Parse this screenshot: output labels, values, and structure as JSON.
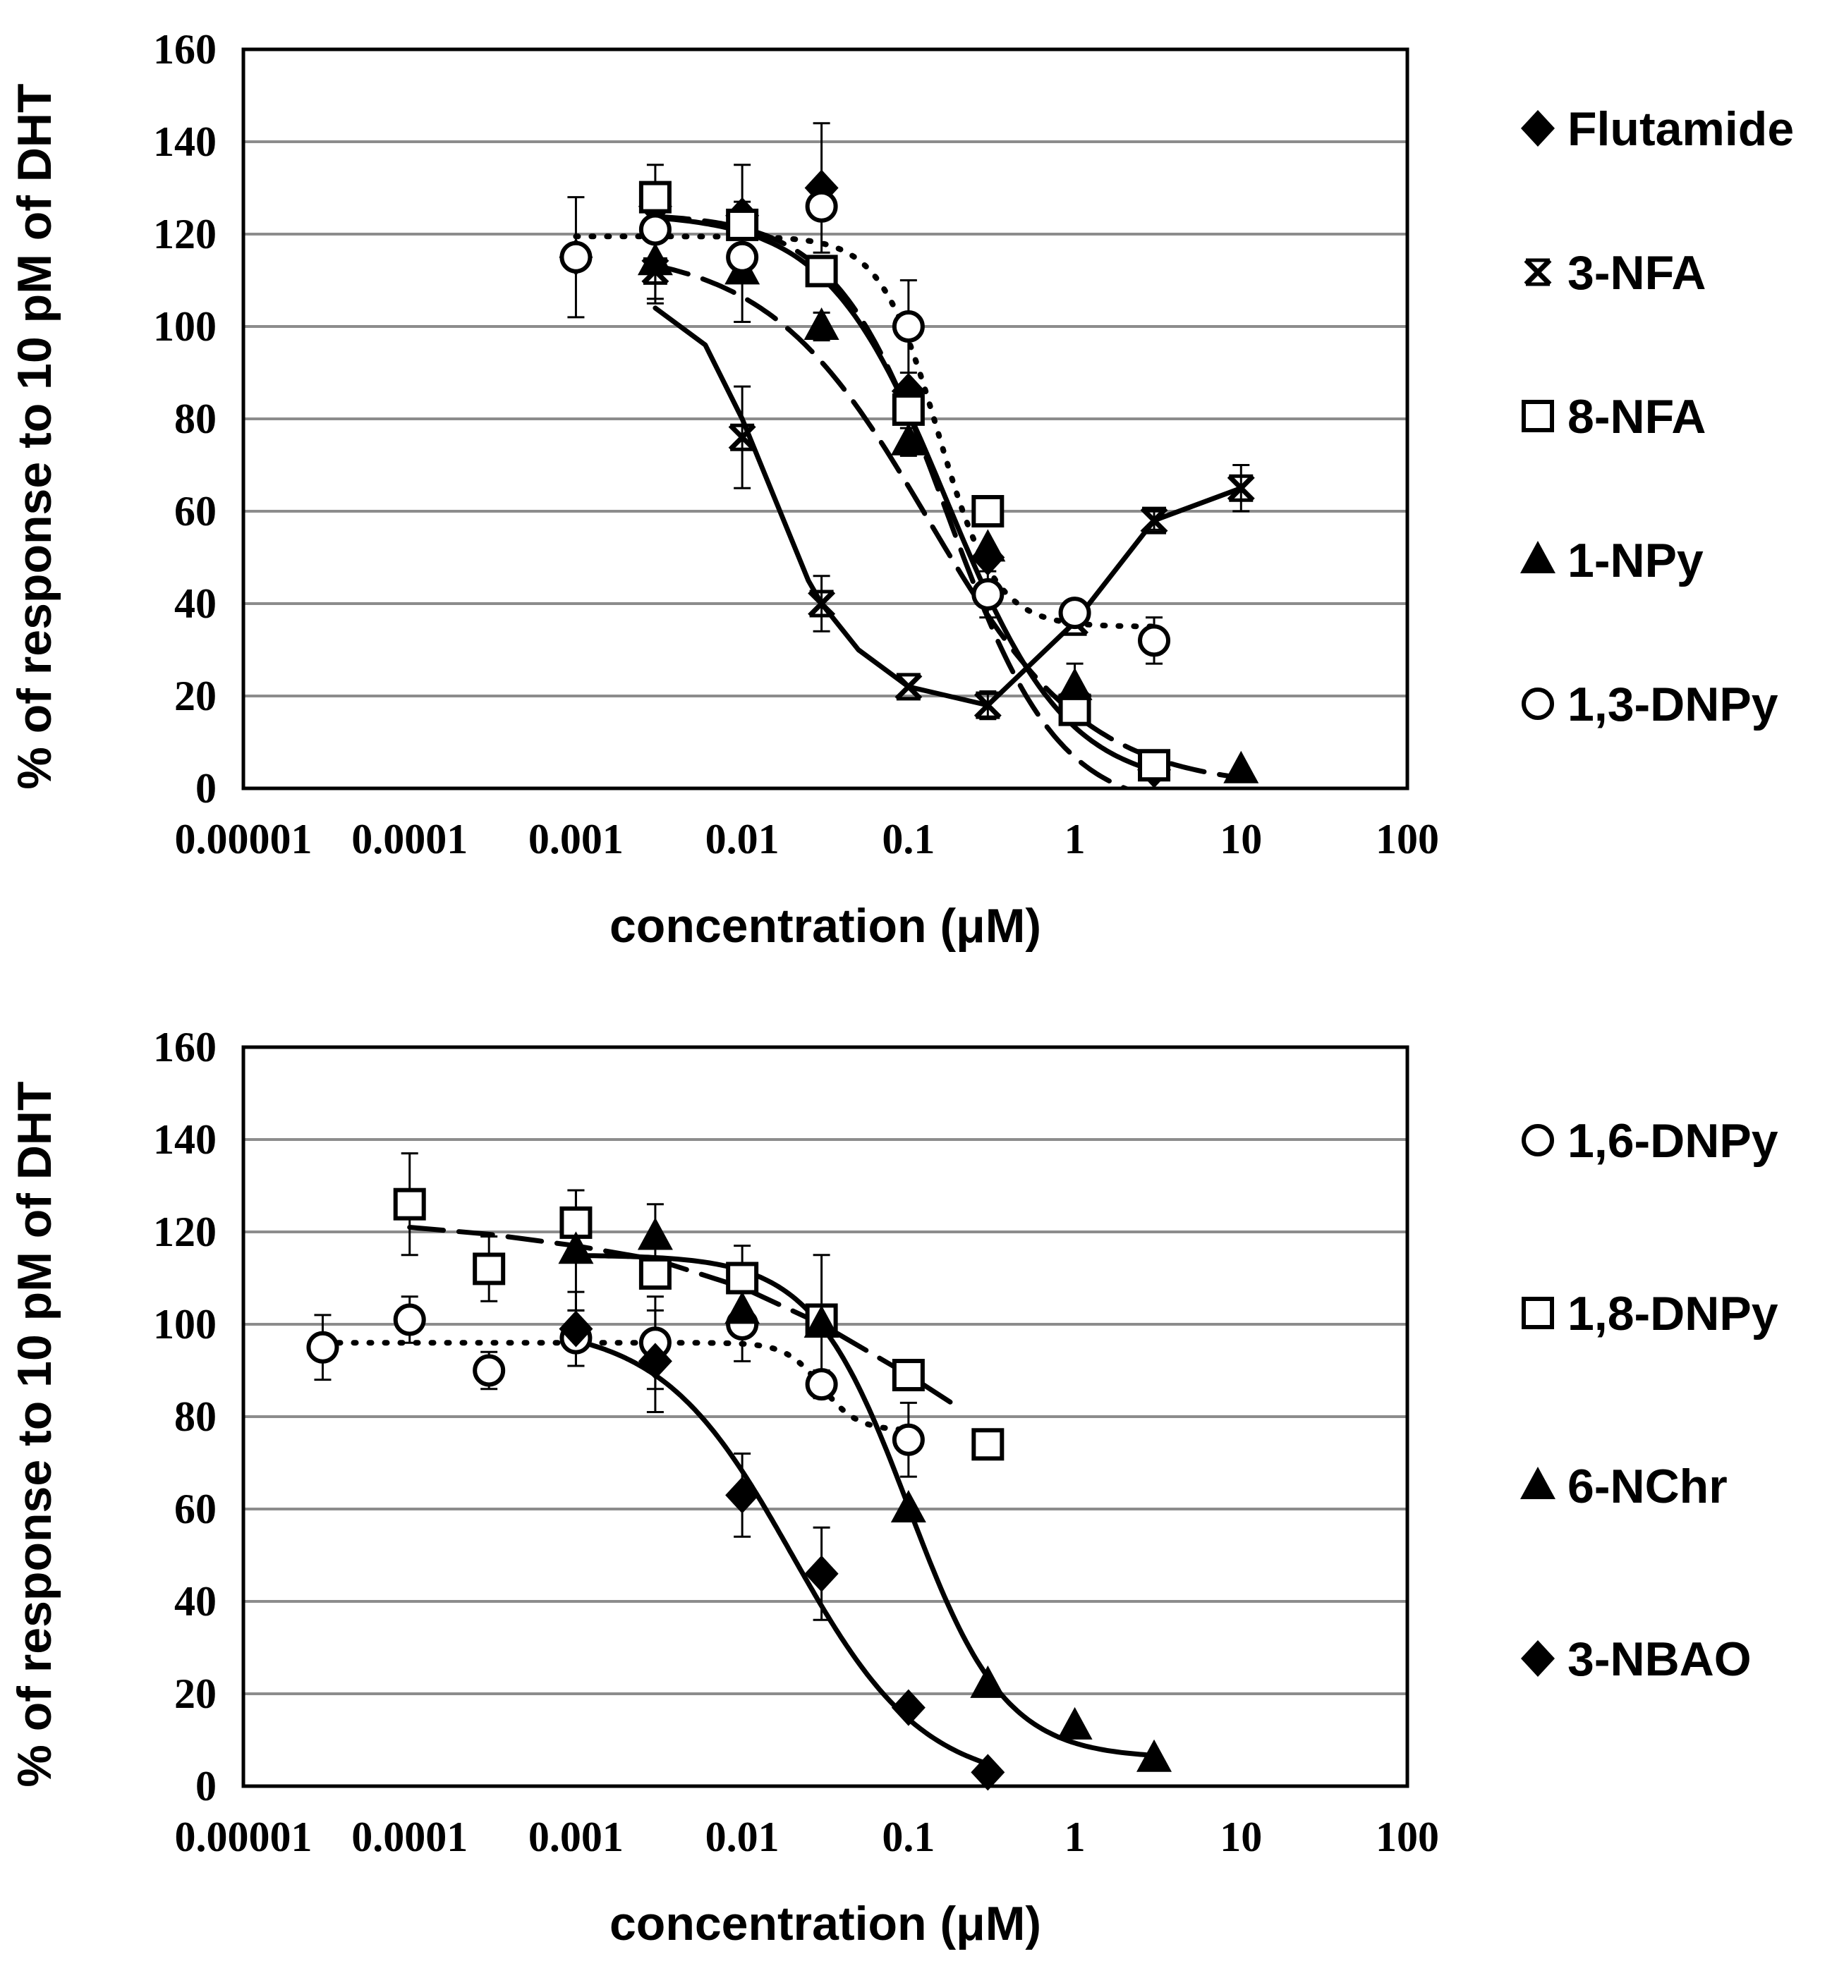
{
  "chart_data": [
    {
      "id": "top",
      "type": "scatter",
      "xscale": "log",
      "xlabel": "concentration (μM)",
      "ylabel": "% of response to 10 pM of DHT",
      "xlim": [
        1e-05,
        100
      ],
      "ylim": [
        0,
        160
      ],
      "xticks": [
        "0.00001",
        "0.0001",
        "0.001",
        "0.01",
        "0.1",
        "1",
        "10",
        "100"
      ],
      "yticks": [
        "0",
        "20",
        "40",
        "60",
        "80",
        "100",
        "120",
        "140",
        "160"
      ],
      "grid": true,
      "legend_position": "right",
      "series": [
        {
          "name": "Flutamide",
          "marker": "diamond",
          "x": [
            0.001,
            0.003,
            0.01,
            0.03,
            0.1,
            0.3,
            1,
            3
          ],
          "y": [
            115,
            126,
            124,
            130,
            86,
            50,
            20,
            4
          ],
          "err": [
            0,
            0,
            11,
            14,
            0,
            0,
            0,
            0
          ],
          "fit": {
            "style": "solid",
            "top": 124.5,
            "bottom": 0,
            "ec50": 0.17,
            "hill": 1.2,
            "xrange": [
              0.003,
              3
            ]
          }
        },
        {
          "name": "3-NFA",
          "marker": "star",
          "x": [
            0.003,
            0.01,
            0.03,
            0.1,
            0.3,
            1,
            3,
            10
          ],
          "y": [
            112,
            76,
            40,
            22,
            18,
            36,
            58,
            65
          ],
          "err": [
            7,
            11,
            6,
            0,
            3,
            0,
            2,
            5
          ],
          "line": {
            "style": "solid",
            "x": [
              0.003,
              0.006,
              0.01,
              0.016,
              0.025,
              0.03,
              0.05,
              0.1,
              0.3,
              1,
              3,
              10
            ],
            "y": [
              104,
              96,
              80,
              62,
              45,
              40,
              30,
              22,
              18,
              36,
              58,
              65
            ]
          }
        },
        {
          "name": "8-NFA",
          "marker": "square",
          "x": [
            0.003,
            0.01,
            0.03,
            0.1,
            0.3,
            1,
            3
          ],
          "y": [
            128,
            122,
            112,
            82,
            60,
            17,
            5
          ],
          "err": [
            7,
            5,
            0,
            0,
            0,
            0,
            0
          ],
          "fit": {
            "style": "dashed",
            "top": 124.5,
            "bottom": -5,
            "ec50": 0.17,
            "hill": 1.3,
            "xrange": [
              0.003,
              7
            ]
          }
        },
        {
          "name": "1-NPy",
          "marker": "triangle",
          "x": [
            0.003,
            0.01,
            0.03,
            0.1,
            0.3,
            1,
            10
          ],
          "y": [
            114,
            112,
            100,
            75,
            52,
            22,
            4
          ],
          "err": [
            8,
            11,
            3,
            3,
            0,
            5,
            0
          ],
          "fit": {
            "style": "dashed",
            "top": 117,
            "bottom": 0,
            "ec50": 0.13,
            "hill": 0.9,
            "xrange": [
              0.003,
              10
            ]
          }
        },
        {
          "name": "1,3-DNPy",
          "marker": "circle",
          "x": [
            0.001,
            0.003,
            0.01,
            0.03,
            0.1,
            0.3,
            1,
            3
          ],
          "y": [
            115,
            121,
            115,
            126,
            100,
            42,
            38,
            32
          ],
          "err": [
            13,
            7,
            0,
            0,
            10,
            5,
            0,
            5
          ],
          "fit": {
            "style": "dotted",
            "top": 119.5,
            "bottom": 35,
            "ec50": 0.15,
            "hill": 2.5,
            "xrange": [
              0.001,
              3
            ]
          }
        }
      ]
    },
    {
      "id": "bottom",
      "type": "scatter",
      "xscale": "log",
      "xlabel": "concentration (μM)",
      "ylabel": "% of response to 10 pM of DHT",
      "xlim": [
        1e-05,
        100
      ],
      "ylim": [
        0,
        160
      ],
      "xticks": [
        "0.00001",
        "0.0001",
        "0.001",
        "0.01",
        "0.1",
        "1",
        "10",
        "100"
      ],
      "yticks": [
        "0",
        "20",
        "40",
        "60",
        "80",
        "100",
        "120",
        "140",
        "160"
      ],
      "grid": true,
      "legend_position": "right",
      "series": [
        {
          "name": "1,6-DNPy",
          "marker": "circle",
          "x": [
            3e-05,
            0.0001,
            0.0003,
            0.001,
            0.003,
            0.01,
            0.03,
            0.1
          ],
          "y": [
            95,
            101,
            90,
            97,
            96,
            100,
            87,
            75
          ],
          "err": [
            7,
            5,
            4,
            6,
            10,
            8,
            3,
            8
          ],
          "fit": {
            "style": "dotted",
            "top": 96,
            "bottom": 77,
            "ec50": 0.03,
            "hill": 4,
            "xrange": [
              3e-05,
              0.1
            ]
          }
        },
        {
          "name": "1,8-DNPy",
          "marker": "square",
          "x": [
            0.0001,
            0.0003,
            0.001,
            0.003,
            0.01,
            0.03,
            0.1,
            0.3
          ],
          "y": [
            126,
            112,
            122,
            111,
            110,
            101,
            89,
            74
          ],
          "err": [
            11,
            7,
            7,
            0,
            7,
            14,
            2,
            3
          ],
          "line": {
            "style": "dashed",
            "x": [
              0.0001,
              0.0003,
              0.001,
              0.003,
              0.01,
              0.03,
              0.1,
              0.2
            ],
            "y": [
              121,
              119.5,
              117,
              114,
              108,
              100,
              89,
              82
            ]
          }
        },
        {
          "name": "6-NChr",
          "marker": "triangle",
          "x": [
            0.001,
            0.003,
            0.01,
            0.03,
            0.1,
            0.3,
            1,
            3
          ],
          "y": [
            116,
            119,
            103,
            100,
            60,
            22,
            13,
            6
          ],
          "err": [
            13,
            7,
            0,
            0,
            0,
            0,
            0,
            0
          ],
          "fit": {
            "style": "solid",
            "top": 115,
            "bottom": 6,
            "ec50": 0.1,
            "hill": 1.5,
            "xrange": [
              0.001,
              3
            ]
          }
        },
        {
          "name": "3-NBAO",
          "marker": "diamond",
          "x": [
            0.001,
            0.003,
            0.01,
            0.03,
            0.1,
            0.3
          ],
          "y": [
            99,
            92,
            63,
            46,
            17,
            3
          ],
          "err": [
            8,
            11,
            9,
            10,
            0,
            0
          ],
          "fit": {
            "style": "solid",
            "top": 100,
            "bottom": 0,
            "ec50": 0.02,
            "hill": 1.1,
            "xrange": [
              0.001,
              0.3
            ]
          }
        }
      ]
    }
  ]
}
